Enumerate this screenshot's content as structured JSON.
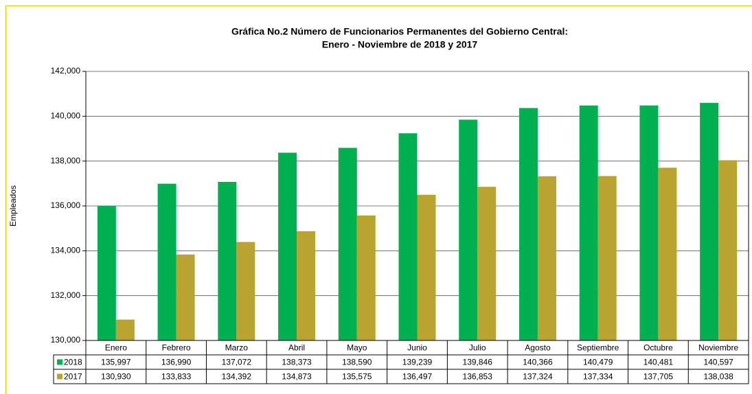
{
  "chart_data": {
    "type": "bar",
    "title": [
      "Gráfica No.2 Número de Funcionarios Permanentes del Gobierno Central:",
      "Enero - Noviembre de 2018 y 2017"
    ],
    "y_label": "Empleados",
    "categories": [
      "Enero",
      "Febrero",
      "Marzo",
      "Abril",
      "Mayo",
      "Junio",
      "Julio",
      "Agosto",
      "Septiembre",
      "Octubre",
      "Noviembre"
    ],
    "series": [
      {
        "name": "2018",
        "color": "#00b050",
        "values": [
          135997,
          136990,
          137072,
          138373,
          138590,
          139239,
          139846,
          140366,
          140479,
          140481,
          140597
        ],
        "value_labels": [
          "135,997",
          "136,990",
          "137,072",
          "138,373",
          "138,590",
          "139,239",
          "139,846",
          "140,366",
          "140,479",
          "140,481",
          "140,597"
        ]
      },
      {
        "name": "2017",
        "color": "#b9a432",
        "values": [
          130930,
          133833,
          134392,
          134873,
          135575,
          136497,
          136853,
          137324,
          137334,
          137705,
          138038
        ],
        "value_labels": [
          "130,930",
          "133,833",
          "134,392",
          "134,873",
          "135,575",
          "136,497",
          "136,853",
          "137,324",
          "137,334",
          "137,705",
          "138,038"
        ]
      }
    ],
    "ylim": [
      130000,
      142000
    ],
    "yticks": [
      {
        "value": 130000,
        "label": "130,000"
      },
      {
        "value": 132000,
        "label": "132,000"
      },
      {
        "value": 134000,
        "label": "134,000"
      },
      {
        "value": 136000,
        "label": "136,000"
      },
      {
        "value": 138000,
        "label": "138,000"
      },
      {
        "value": 140000,
        "label": "140,000"
      },
      {
        "value": 142000,
        "label": "142,000"
      }
    ],
    "grid": true
  }
}
